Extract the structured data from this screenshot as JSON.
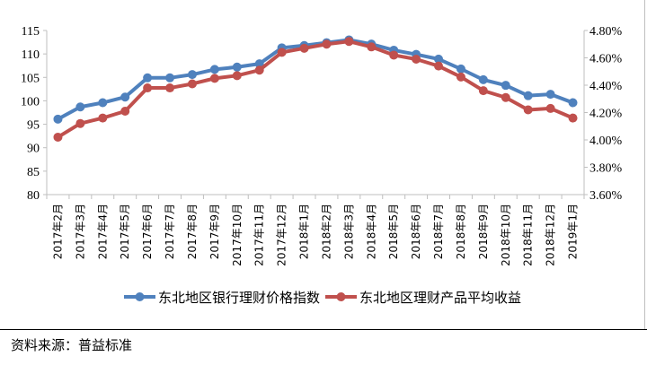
{
  "chart_data": {
    "type": "line",
    "categories": [
      "2017年2月",
      "2017年3月",
      "2017年4月",
      "2017年5月",
      "2017年6月",
      "2017年7月",
      "2017年8月",
      "2017年9月",
      "2017年10月",
      "2017年11月",
      "2017年12月",
      "2018年1月",
      "2018年2月",
      "2018年3月",
      "2018年4月",
      "2018年5月",
      "2018年6月",
      "2018年7月",
      "2018年8月",
      "2018年9月",
      "2018年10月",
      "2018年11月",
      "2018年12月",
      "2019年1月"
    ],
    "series": [
      {
        "name": "东北地区银行理财价格指数",
        "axis": "left",
        "color": "#4f81bd",
        "values": [
          96.1,
          98.7,
          99.6,
          100.8,
          104.9,
          104.9,
          105.6,
          106.7,
          107.2,
          107.9,
          111.3,
          111.8,
          112.4,
          113.0,
          112.1,
          110.8,
          109.9,
          108.9,
          106.8,
          104.5,
          103.3,
          101.1,
          101.4,
          99.6
        ]
      },
      {
        "name": "东北地区理财产品平均收益",
        "axis": "right",
        "color": "#c0504d",
        "values": [
          4.02,
          4.12,
          4.16,
          4.21,
          4.38,
          4.38,
          4.41,
          4.45,
          4.47,
          4.51,
          4.64,
          4.67,
          4.7,
          4.72,
          4.68,
          4.62,
          4.59,
          4.54,
          4.46,
          4.36,
          4.31,
          4.22,
          4.23,
          4.16
        ]
      }
    ],
    "y_left": {
      "range": [
        80,
        115
      ],
      "ticks": [
        "80",
        "85",
        "90",
        "95",
        "100",
        "105",
        "110",
        "115"
      ]
    },
    "y_right": {
      "range": [
        3.6,
        4.8
      ],
      "unit": "%",
      "ticks": [
        "3.60%",
        "3.80%",
        "4.00%",
        "4.20%",
        "4.40%",
        "4.60%",
        "4.80%"
      ]
    },
    "grid": false,
    "legend_position": "bottom"
  },
  "source": "资料来源：普益标准"
}
